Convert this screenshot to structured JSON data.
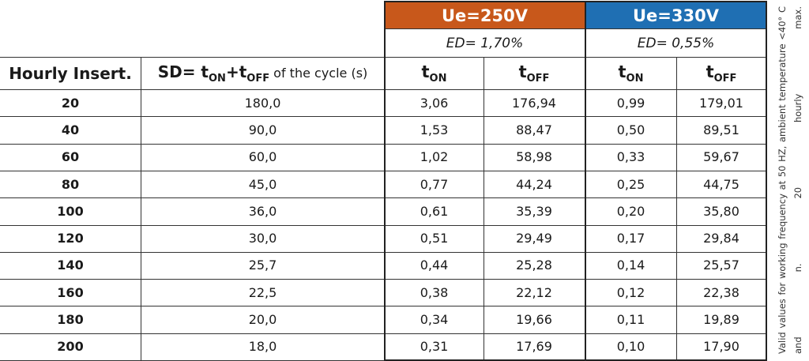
{
  "voltage_headers": {
    "ue250": "Ue=250V",
    "ue330": "Ue=330V",
    "ed250": "ED= 1,70%",
    "ed330": "ED= 0,55%"
  },
  "columns": {
    "hourly": "Hourly Insert.",
    "sd_prefix": "SD= t",
    "sd_on": "ON",
    "sd_plus": "+t",
    "sd_off": "OFF",
    "sd_suffix": " of the cycle (s)",
    "t": "t",
    "on": "ON",
    "off": "OFF"
  },
  "rows": [
    {
      "hourly": "20",
      "sd": "180,0",
      "t_on_250": "3,06",
      "t_off_250": "176,94",
      "t_on_330": "0,99",
      "t_off_330": "179,01"
    },
    {
      "hourly": "40",
      "sd": "90,0",
      "t_on_250": "1,53",
      "t_off_250": "88,47",
      "t_on_330": "0,50",
      "t_off_330": "89,51"
    },
    {
      "hourly": "60",
      "sd": "60,0",
      "t_on_250": "1,02",
      "t_off_250": "58,98",
      "t_on_330": "0,33",
      "t_off_330": "59,67"
    },
    {
      "hourly": "80",
      "sd": "45,0",
      "t_on_250": "0,77",
      "t_off_250": "44,24",
      "t_on_330": "0,25",
      "t_off_330": "44,75"
    },
    {
      "hourly": "100",
      "sd": "36,0",
      "t_on_250": "0,61",
      "t_off_250": "35,39",
      "t_on_330": "0,20",
      "t_off_330": "35,80"
    },
    {
      "hourly": "120",
      "sd": "30,0",
      "t_on_250": "0,51",
      "t_off_250": "29,49",
      "t_on_330": "0,17",
      "t_off_330": "29,84"
    },
    {
      "hourly": "140",
      "sd": "25,7",
      "t_on_250": "0,44",
      "t_off_250": "25,28",
      "t_on_330": "0,14",
      "t_off_330": "25,57"
    },
    {
      "hourly": "160",
      "sd": "22,5",
      "t_on_250": "0,38",
      "t_off_250": "22,12",
      "t_on_330": "0,12",
      "t_off_330": "22,38"
    },
    {
      "hourly": "180",
      "sd": "20,0",
      "t_on_250": "0,34",
      "t_off_250": "19,66",
      "t_on_330": "0,11",
      "t_off_330": "19,89"
    },
    {
      "hourly": "200",
      "sd": "18,0",
      "t_on_250": "0,31",
      "t_off_250": "17,69",
      "t_on_330": "0,10",
      "t_off_330": "17,90"
    }
  ],
  "note": "Valid values for working frequency at 50 HZ, ambient temperature <40° C and n. 20 hourly max.",
  "colors": {
    "orange": "#c8581b",
    "blue": "#1f6fb3"
  }
}
